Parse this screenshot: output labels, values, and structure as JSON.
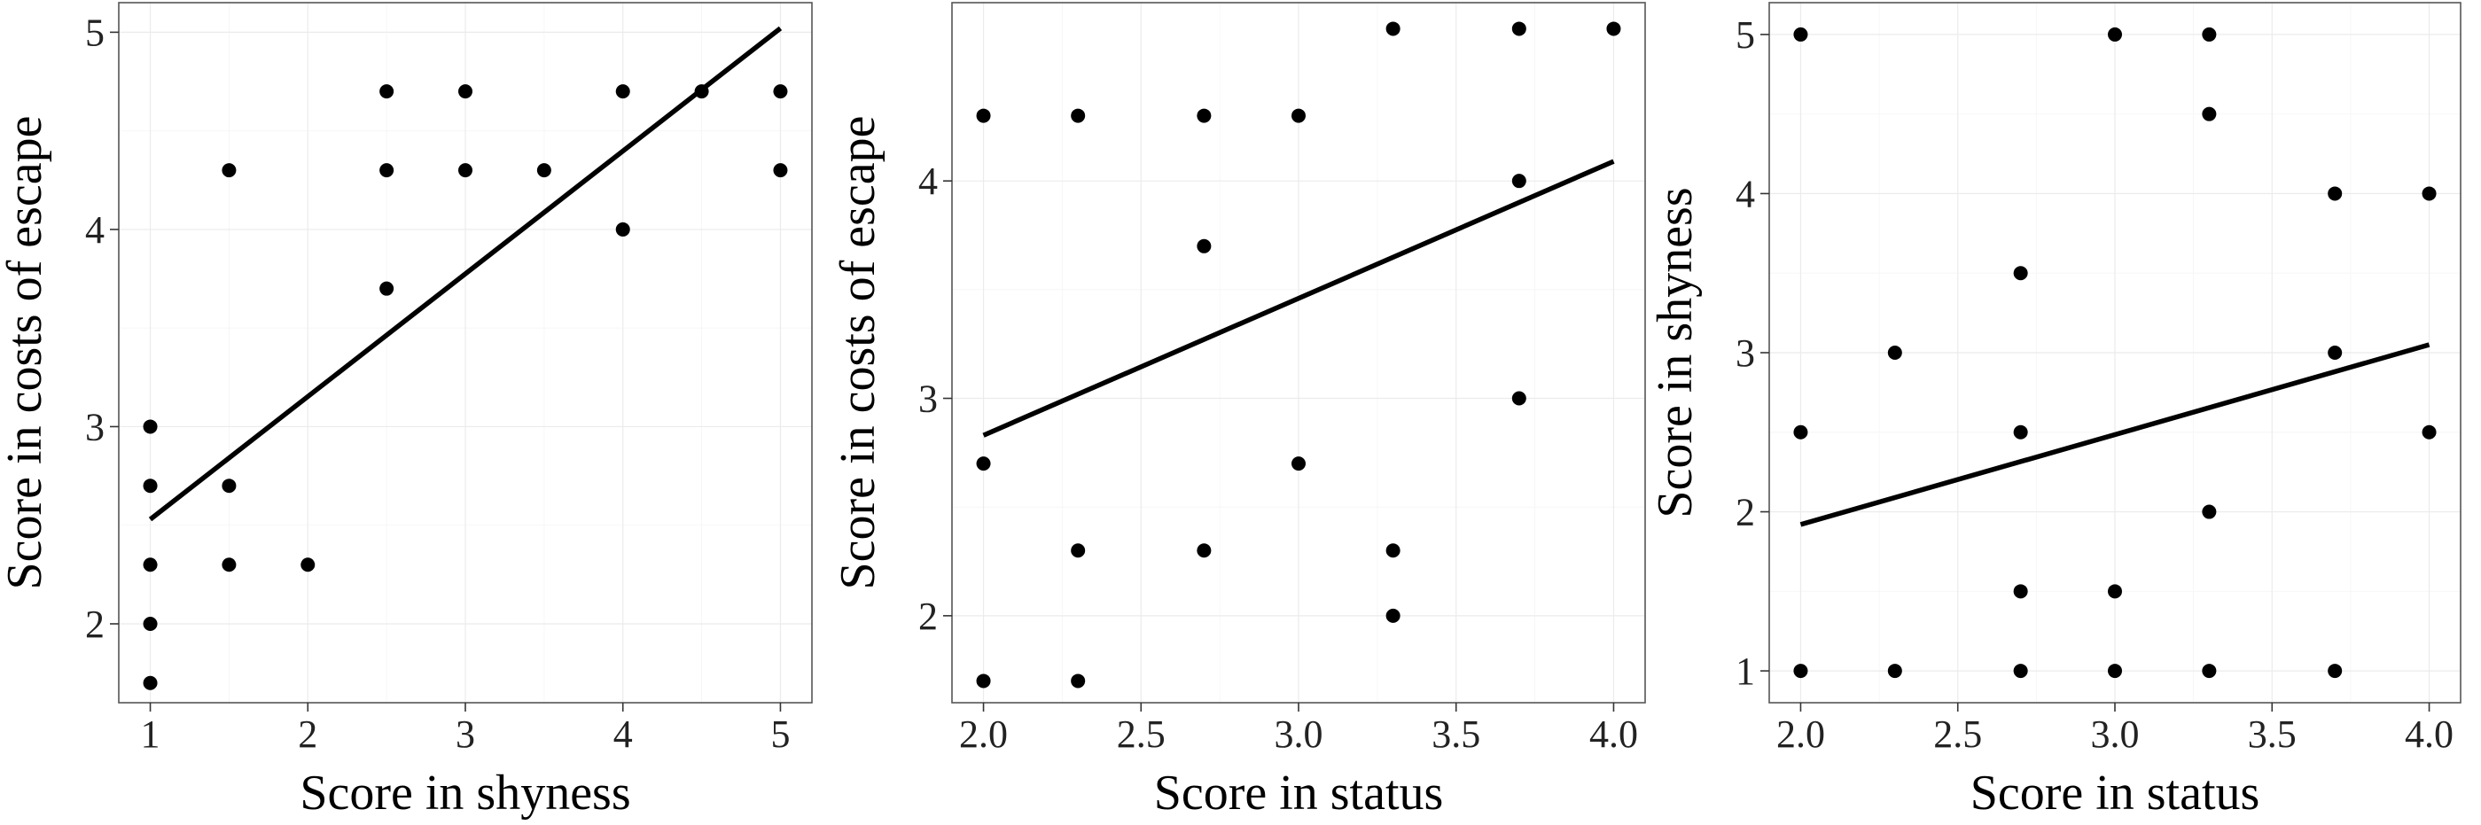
{
  "chart_data": [
    {
      "type": "scatter",
      "title": "",
      "xlabel": "Score in shyness",
      "ylabel": "Score in costs of escape",
      "xlim": [
        0.8,
        5.2
      ],
      "ylim": [
        1.6,
        5.15
      ],
      "xticks": [
        1,
        2,
        3,
        4,
        5
      ],
      "xtick_labels": [
        "1",
        "2",
        "3",
        "4",
        "5"
      ],
      "yticks": [
        2,
        3,
        4,
        5
      ],
      "ytick_labels": [
        "2",
        "3",
        "4",
        "5"
      ],
      "grid": true,
      "points": [
        [
          1,
          1.7
        ],
        [
          1,
          2.0
        ],
        [
          1,
          2.3
        ],
        [
          1,
          2.7
        ],
        [
          1,
          3.0
        ],
        [
          1.5,
          2.3
        ],
        [
          1.5,
          2.7
        ],
        [
          1.5,
          4.3
        ],
        [
          2,
          2.3
        ],
        [
          2.5,
          3.7
        ],
        [
          2.5,
          4.3
        ],
        [
          2.5,
          4.7
        ],
        [
          3,
          4.3
        ],
        [
          3,
          4.7
        ],
        [
          3.5,
          4.3
        ],
        [
          4,
          4.0
        ],
        [
          4,
          4.7
        ],
        [
          4.5,
          4.7
        ],
        [
          5,
          4.3
        ],
        [
          5,
          4.7
        ]
      ],
      "fit_line": {
        "x": [
          1,
          5
        ],
        "y": [
          2.53,
          5.02
        ]
      }
    },
    {
      "type": "scatter",
      "title": "",
      "xlabel": "Score in status",
      "ylabel": "Score in costs of escape",
      "xlim": [
        1.9,
        4.1
      ],
      "ylim": [
        1.6,
        4.82
      ],
      "xticks": [
        2.0,
        2.5,
        3.0,
        3.5,
        4.0
      ],
      "xtick_labels": [
        "2.0",
        "2.5",
        "3.0",
        "3.5",
        "4.0"
      ],
      "yticks": [
        2,
        3,
        4
      ],
      "ytick_labels": [
        "2",
        "3",
        "4"
      ],
      "grid": true,
      "points": [
        [
          2.0,
          1.7
        ],
        [
          2.0,
          2.7
        ],
        [
          2.0,
          4.3
        ],
        [
          2.3,
          1.7
        ],
        [
          2.3,
          2.3
        ],
        [
          2.3,
          4.3
        ],
        [
          2.7,
          2.3
        ],
        [
          2.7,
          3.7
        ],
        [
          2.7,
          4.3
        ],
        [
          3.0,
          2.7
        ],
        [
          3.0,
          4.3
        ],
        [
          3.3,
          2.0
        ],
        [
          3.3,
          2.3
        ],
        [
          3.3,
          4.7
        ],
        [
          3.7,
          3.0
        ],
        [
          3.7,
          4.0
        ],
        [
          3.7,
          4.7
        ],
        [
          4.0,
          4.7
        ]
      ],
      "fit_line": {
        "x": [
          2.0,
          4.0
        ],
        "y": [
          2.83,
          4.09
        ]
      }
    },
    {
      "type": "scatter",
      "title": "",
      "xlabel": "Score in status",
      "ylabel": "Score in shyness",
      "xlim": [
        1.9,
        4.1
      ],
      "ylim": [
        0.8,
        5.2
      ],
      "xticks": [
        2.0,
        2.5,
        3.0,
        3.5,
        4.0
      ],
      "xtick_labels": [
        "2.0",
        "2.5",
        "3.0",
        "3.5",
        "4.0"
      ],
      "yticks": [
        1,
        2,
        3,
        4,
        5
      ],
      "ytick_labels": [
        "1",
        "2",
        "3",
        "4",
        "5"
      ],
      "grid": true,
      "points": [
        [
          2.0,
          1
        ],
        [
          2.0,
          2.5
        ],
        [
          2.0,
          5
        ],
        [
          2.3,
          1
        ],
        [
          2.3,
          3
        ],
        [
          2.7,
          1
        ],
        [
          2.7,
          1.5
        ],
        [
          2.7,
          2.5
        ],
        [
          2.7,
          3.5
        ],
        [
          3.0,
          1
        ],
        [
          3.0,
          1.5
        ],
        [
          3.0,
          5
        ],
        [
          3.3,
          1
        ],
        [
          3.3,
          2
        ],
        [
          3.3,
          4.5
        ],
        [
          3.3,
          5
        ],
        [
          3.7,
          1
        ],
        [
          3.7,
          3
        ],
        [
          3.7,
          4
        ],
        [
          4.0,
          2.5
        ],
        [
          4.0,
          4
        ]
      ],
      "fit_line": {
        "x": [
          2.0,
          4.0
        ],
        "y": [
          1.92,
          3.05
        ]
      }
    }
  ]
}
